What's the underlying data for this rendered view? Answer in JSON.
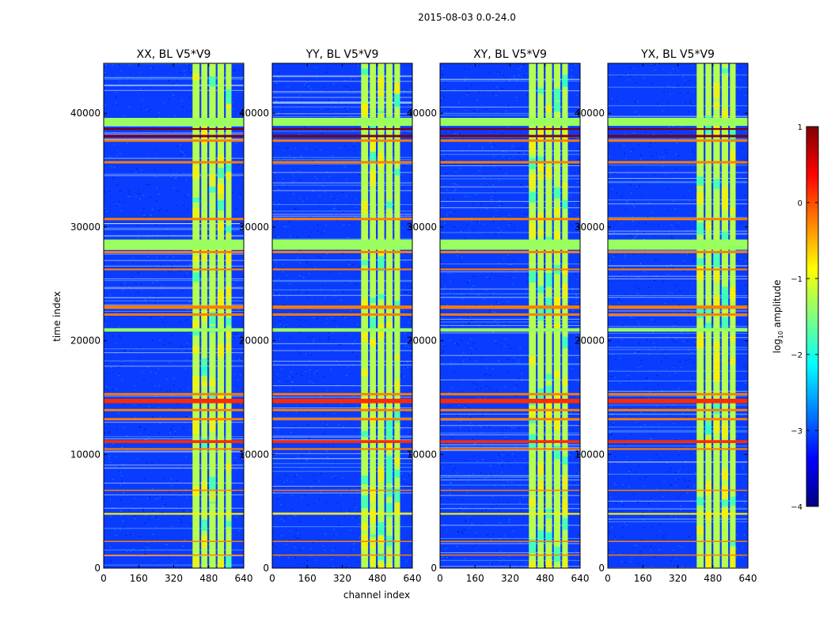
{
  "suptitle": "2015-08-03 0.0-24.0",
  "colors": {
    "background": "#000080",
    "bg_noise": "#0a3cff",
    "speckle": "#00b4ff",
    "band_green": "#9aff5e",
    "band_yellow": "#fcef00",
    "band_orange": "#ff7d00",
    "band_red": "#ff2a00",
    "band_darkred": "#800000",
    "cyan": "#25ffd0",
    "colormap": [
      "#000080",
      "#0000ff",
      "#0080ff",
      "#00ffff",
      "#80ff80",
      "#ffff00",
      "#ff8000",
      "#ff0000",
      "#800000"
    ]
  },
  "chart_data": {
    "type": "heatmap",
    "subtype": "waterfall",
    "xlabel": "channel index",
    "ylabel": "time index",
    "xlim": [
      0,
      640
    ],
    "ylim": [
      0,
      44400
    ],
    "xticks": [
      0,
      160,
      320,
      480,
      640
    ],
    "yticks": [
      0,
      10000,
      20000,
      30000,
      40000
    ],
    "panels": [
      {
        "title": "XX, BL V5*V9",
        "pol": "XX"
      },
      {
        "title": "YY, BL V5*V9",
        "pol": "YY"
      },
      {
        "title": "XY, BL V5*V9",
        "pol": "XY"
      },
      {
        "title": "YX, BL V5*V9",
        "pol": "YX"
      }
    ],
    "rfi_channel_blocks": [
      {
        "start": 406,
        "end": 438
      },
      {
        "start": 446,
        "end": 474
      },
      {
        "start": 482,
        "end": 512
      },
      {
        "start": 520,
        "end": 550
      },
      {
        "start": 558,
        "end": 584
      }
    ],
    "rfi_time_bands": [
      {
        "start": 38900,
        "end": 39600,
        "color": "band_green"
      },
      {
        "start": 38550,
        "end": 38700,
        "color": "band_darkred"
      },
      {
        "start": 37900,
        "end": 38100,
        "color": "band_darkred"
      },
      {
        "start": 37500,
        "end": 37700,
        "color": "band_orange"
      },
      {
        "start": 35600,
        "end": 35800,
        "color": "band_orange"
      },
      {
        "start": 30600,
        "end": 30800,
        "color": "band_orange"
      },
      {
        "start": 28000,
        "end": 28900,
        "color": "band_green"
      },
      {
        "start": 27700,
        "end": 27900,
        "color": "band_orange"
      },
      {
        "start": 26200,
        "end": 26350,
        "color": "band_orange"
      },
      {
        "start": 22800,
        "end": 23100,
        "color": "band_orange"
      },
      {
        "start": 22200,
        "end": 22400,
        "color": "band_orange"
      },
      {
        "start": 20800,
        "end": 21100,
        "color": "band_green"
      },
      {
        "start": 15200,
        "end": 15400,
        "color": "band_orange"
      },
      {
        "start": 14500,
        "end": 14900,
        "color": "band_red"
      },
      {
        "start": 13800,
        "end": 14000,
        "color": "band_orange"
      },
      {
        "start": 13000,
        "end": 13200,
        "color": "band_orange"
      },
      {
        "start": 11000,
        "end": 11250,
        "color": "band_red"
      },
      {
        "start": 10400,
        "end": 10550,
        "color": "band_orange"
      },
      {
        "start": 6800,
        "end": 6900,
        "color": "band_orange"
      },
      {
        "start": 4700,
        "end": 4850,
        "color": "band_yellow"
      },
      {
        "start": 2300,
        "end": 2400,
        "color": "band_orange"
      },
      {
        "start": 1100,
        "end": 1200,
        "color": "band_orange"
      }
    ],
    "colorbar": {
      "label_prefix": "log",
      "label_sub": "10",
      "label_suffix": " amplitude",
      "ticks": [
        1,
        0,
        -1,
        -2,
        -3,
        -4
      ],
      "tick_labels": [
        "1",
        "0",
        "−1",
        "−2",
        "−3",
        "−4"
      ],
      "vmin": -4,
      "vmax": 1
    }
  }
}
